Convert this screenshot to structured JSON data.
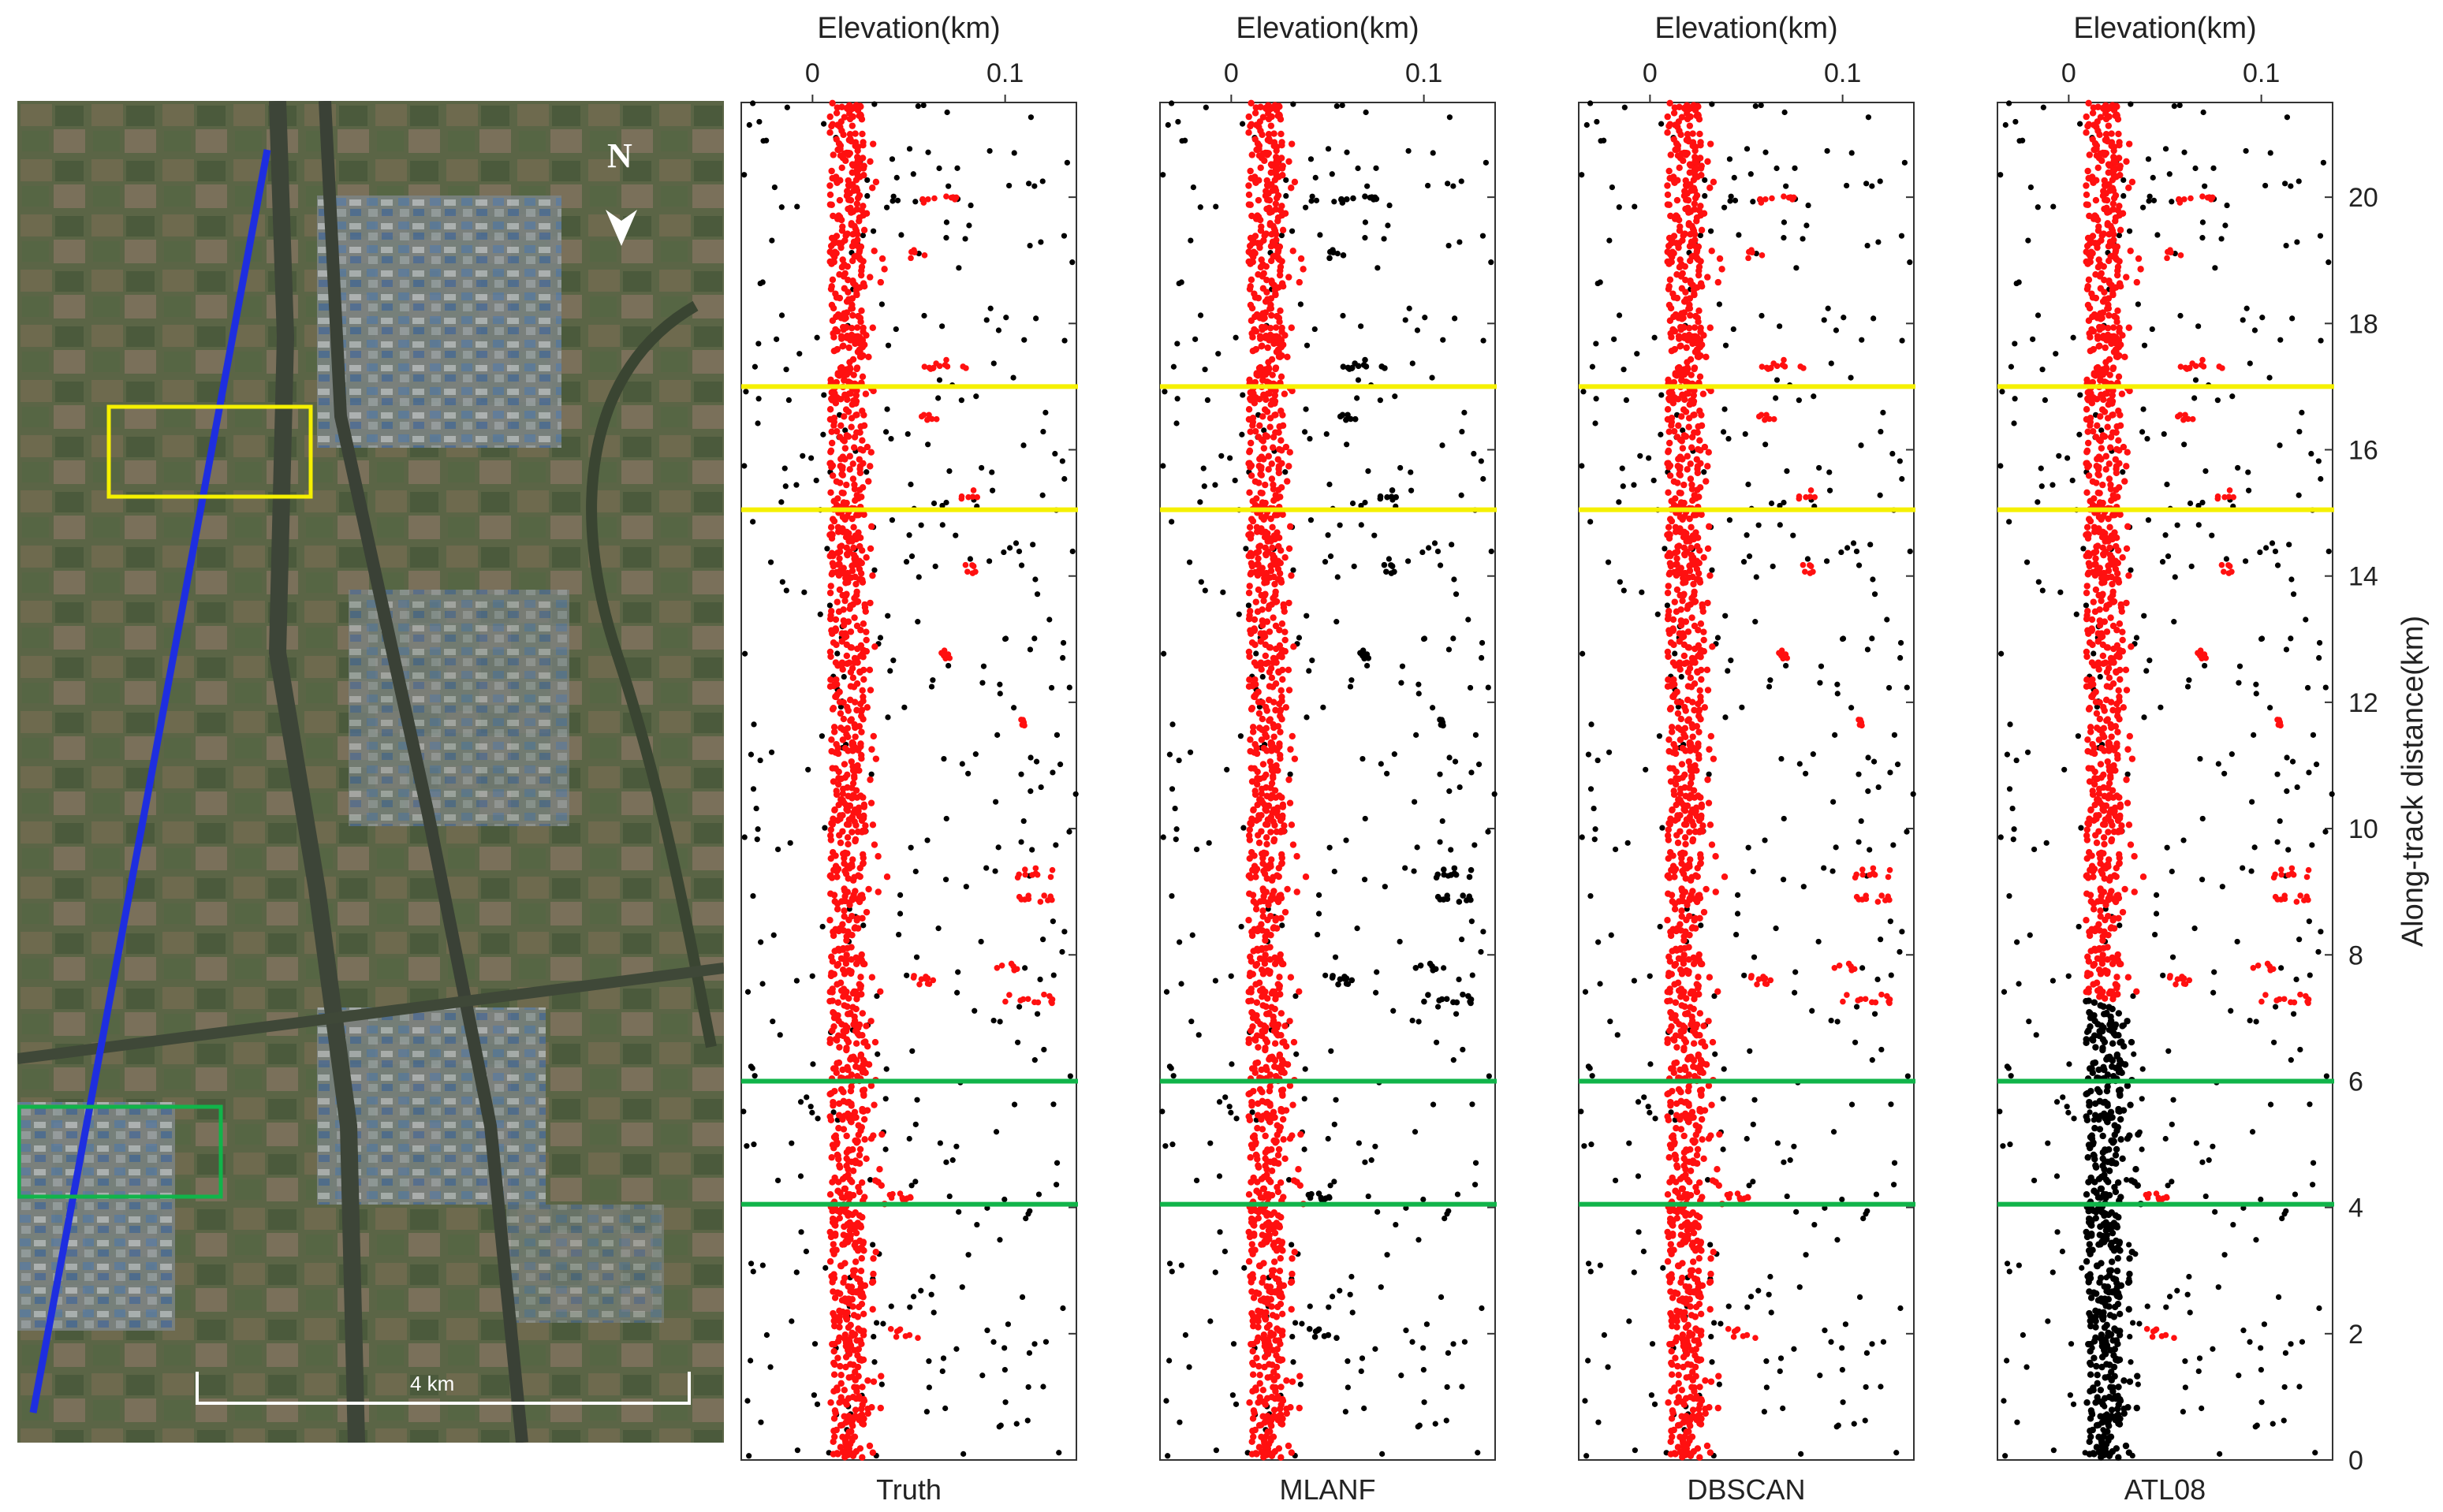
{
  "map": {
    "scale_label": "4 km",
    "north_label": "N",
    "colors": {
      "track": "#1e2ee0",
      "box_yellow": "#f5f000",
      "box_green": "#11b44a",
      "scale": "#ffffff"
    }
  },
  "chart_data": {
    "type": "scatter",
    "top_axis_label": "Elevation(km)",
    "x_ticks": [
      "0",
      "0.1"
    ],
    "x_tick_values": [
      0,
      0.1
    ],
    "xlim": [
      -0.037,
      0.137
    ],
    "ylim": [
      0,
      21.5
    ],
    "y_label": "Along-track distance(km)",
    "y_ticks": [
      0,
      2,
      4,
      6,
      8,
      10,
      12,
      14,
      16,
      18,
      20
    ],
    "reference_lines": [
      {
        "y": 17.0,
        "color": "#f5f000"
      },
      {
        "y": 15.05,
        "color": "#f5f000"
      },
      {
        "y": 6.0,
        "color": "#11b44a"
      },
      {
        "y": 4.05,
        "color": "#11b44a"
      }
    ],
    "signal_color": "#ff1010",
    "noise_color": "#000000",
    "ground_elevation_km": 0.018,
    "panels": [
      {
        "label": "Truth"
      },
      {
        "label": "MLANF"
      },
      {
        "label": "DBSCAN"
      },
      {
        "label": "ATL08"
      }
    ],
    "signal_clusters": [
      {
        "y": 19.95,
        "x0": 0.057,
        "x1": 0.075
      },
      {
        "y": 19.1,
        "x0": 0.051,
        "x1": 0.06
      },
      {
        "y": 17.35,
        "x0": 0.057,
        "x1": 0.08
      },
      {
        "y": 16.5,
        "x0": 0.055,
        "x1": 0.065
      },
      {
        "y": 15.3,
        "x0": 0.077,
        "x1": 0.087
      },
      {
        "y": 14.1,
        "x0": 0.076,
        "x1": 0.086
      },
      {
        "y": 12.75,
        "x0": 0.066,
        "x1": 0.072
      },
      {
        "y": 11.7,
        "x0": 0.105,
        "x1": 0.11
      },
      {
        "y": 9.3,
        "x0": 0.105,
        "x1": 0.125
      },
      {
        "y": 8.9,
        "x0": 0.105,
        "x1": 0.125
      },
      {
        "y": 7.8,
        "x0": 0.095,
        "x1": 0.107
      },
      {
        "y": 7.3,
        "x0": 0.1,
        "x1": 0.125
      },
      {
        "y": 7.6,
        "x0": 0.05,
        "x1": 0.07
      },
      {
        "y": 4.15,
        "x0": 0.04,
        "x1": 0.06
      },
      {
        "y": 2.0,
        "x0": 0.04,
        "x1": 0.055
      }
    ]
  }
}
